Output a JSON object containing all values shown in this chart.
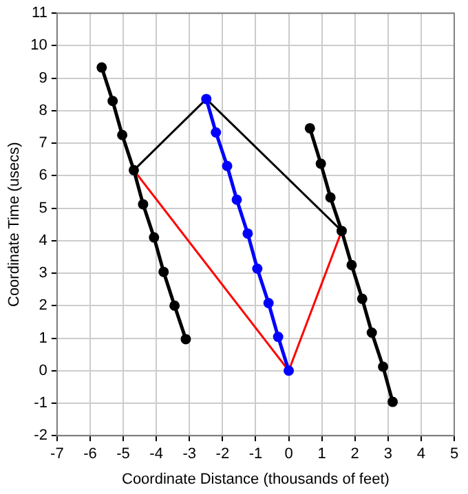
{
  "chart_data": {
    "type": "line",
    "xlabel": "Coordinate Distance (thousands of feet)",
    "ylabel": "Coordinate Time (usecs)",
    "xlim": [
      -7,
      5
    ],
    "xticks": [
      -7,
      -6,
      -5,
      -4,
      -3,
      -2,
      -1,
      0,
      1,
      2,
      3,
      4,
      5
    ],
    "ylim": [
      -2,
      11
    ],
    "yticks": [
      -2,
      -1,
      0,
      1,
      2,
      3,
      4,
      5,
      6,
      7,
      8,
      9,
      10,
      11
    ],
    "grid": true,
    "legend": false,
    "marker": "circle",
    "series": [
      {
        "color": "#000000",
        "x": [
          -5.65,
          -5.32,
          -5.03,
          -4.68,
          -4.4,
          -4.07,
          -3.78,
          -3.45,
          -3.11
        ],
        "values": [
          9.33,
          8.3,
          7.25,
          6.17,
          5.12,
          4.1,
          3.04,
          2.0,
          0.97
        ]
      },
      {
        "color": "#0000ff",
        "x": [
          -2.49,
          -2.2,
          -1.86,
          -1.57,
          -1.24,
          -0.95,
          -0.61,
          -0.32,
          0
        ],
        "values": [
          8.36,
          7.33,
          6.3,
          5.26,
          4.22,
          3.14,
          2.08,
          1.04,
          0
        ]
      },
      {
        "color": "#000000",
        "x": [
          0.64,
          0.97,
          1.26,
          1.6,
          1.9,
          2.22,
          2.51,
          2.85,
          3.14
        ],
        "values": [
          7.46,
          6.37,
          5.33,
          4.3,
          3.25,
          2.21,
          1.17,
          0.12,
          -0.96
        ]
      },
      {
        "color": "#ff0000",
        "marker": "none",
        "x": [
          -4.68,
          0,
          1.6
        ],
        "values": [
          6.17,
          0,
          4.3
        ]
      },
      {
        "color": "#000000",
        "marker": "none",
        "x": [
          -4.68,
          -2.49,
          1.6
        ],
        "values": [
          6.17,
          8.36,
          4.3
        ]
      }
    ]
  }
}
